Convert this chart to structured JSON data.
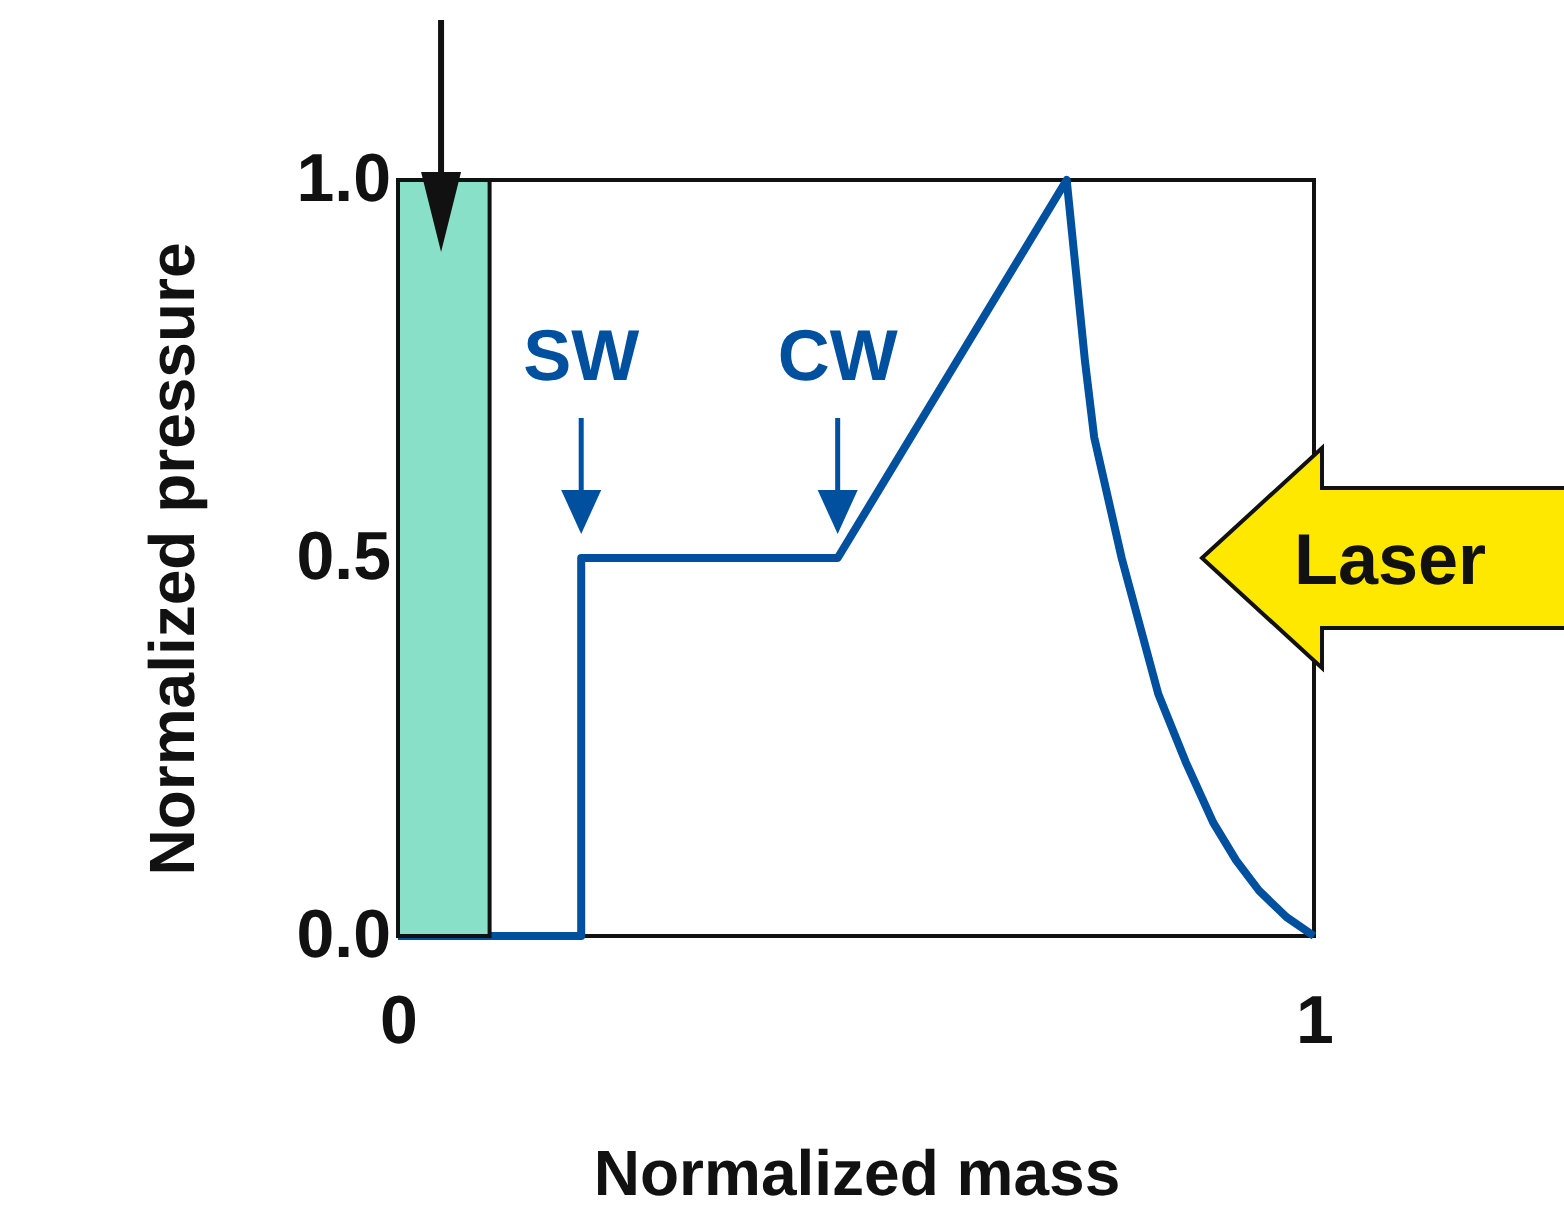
{
  "chart_data": {
    "type": "line",
    "xlabel": "Normalized mass",
    "ylabel": "Normalized pressure",
    "x": [
      0,
      0.2,
      0.2,
      0.48,
      0.73,
      0.74,
      0.75,
      0.76,
      0.79,
      0.81,
      0.83,
      0.86,
      0.89,
      0.915,
      0.94,
      0.97,
      1
    ],
    "series": [
      {
        "color": "#0050a0",
        "values": [
          0,
          0,
          0.5,
          0.5,
          1,
          0.88,
          0.76,
          0.66,
          0.5,
          0.41,
          0.32,
          0.23,
          0.15,
          0.1,
          0.06,
          0.025,
          0
        ]
      }
    ],
    "bands": [
      {
        "axis": "x",
        "from": 0,
        "to": 0.1,
        "color": "#88e0c8"
      }
    ],
    "annotations": [
      {
        "text": "SW",
        "x": 0.2,
        "y": 0.5
      },
      {
        "text": "CW",
        "x": 0.48,
        "y": 0.5
      },
      "Laser"
    ],
    "xlim": [
      0,
      1
    ],
    "ylim": [
      0,
      1
    ],
    "xticks": [
      0,
      1
    ],
    "yticks": [
      {
        "value": 0,
        "label": "0.0"
      },
      {
        "value": 0.5,
        "label": "0.5"
      },
      {
        "value": 1,
        "label": "1.0"
      }
    ],
    "grid": false,
    "legend": false,
    "marker": "none",
    "line_style": "solid"
  }
}
